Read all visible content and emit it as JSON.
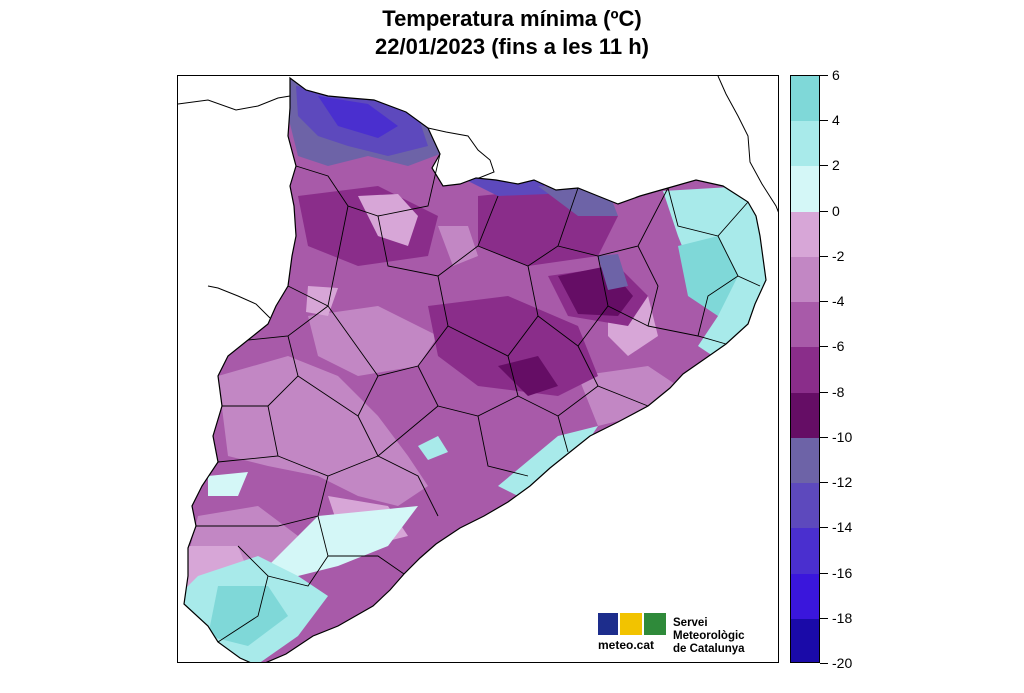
{
  "header": {
    "title_line1": "Temperatura mínima (ºC)",
    "title_line2": "22/01/2023 (fins a les 11 h)"
  },
  "legend": {
    "levels": [
      {
        "label": "6",
        "value": 6
      },
      {
        "label": "4",
        "value": 4
      },
      {
        "label": "2",
        "value": 2
      },
      {
        "label": "0",
        "value": 0
      },
      {
        "label": "-2",
        "value": -2
      },
      {
        "label": "-4",
        "value": -4
      },
      {
        "label": "-6",
        "value": -6
      },
      {
        "label": "-8",
        "value": -8
      },
      {
        "label": "-10",
        "value": -10
      },
      {
        "label": "-12",
        "value": -12
      },
      {
        "label": "-14",
        "value": -14
      },
      {
        "label": "-16",
        "value": -16
      },
      {
        "label": "-18",
        "value": -18
      },
      {
        "label": "-20",
        "value": -20
      }
    ],
    "bands": [
      {
        "from": 4,
        "to": 6,
        "color": "#7fd8d8"
      },
      {
        "from": 2,
        "to": 4,
        "color": "#a8eaea"
      },
      {
        "from": 0,
        "to": 2,
        "color": "#d4f7f7"
      },
      {
        "from": -2,
        "to": 0,
        "color": "#d7a6d7"
      },
      {
        "from": -4,
        "to": -2,
        "color": "#c287c4"
      },
      {
        "from": -6,
        "to": -4,
        "color": "#a85aa9"
      },
      {
        "from": -8,
        "to": -6,
        "color": "#8a2d8a"
      },
      {
        "from": -10,
        "to": -8,
        "color": "#650d65"
      },
      {
        "from": -12,
        "to": -10,
        "color": "#6d63a7"
      },
      {
        "from": -14,
        "to": -12,
        "color": "#5d49bd"
      },
      {
        "from": -16,
        "to": -14,
        "color": "#4a2fcf"
      },
      {
        "from": -18,
        "to": -16,
        "color": "#3a16dc"
      },
      {
        "from": -20,
        "to": -18,
        "color": "#1a0aa8"
      }
    ]
  },
  "logo": {
    "text": "meteo.cat",
    "org_line1": "Servei Meteorològic",
    "org_line2": "de Catalunya"
  }
}
